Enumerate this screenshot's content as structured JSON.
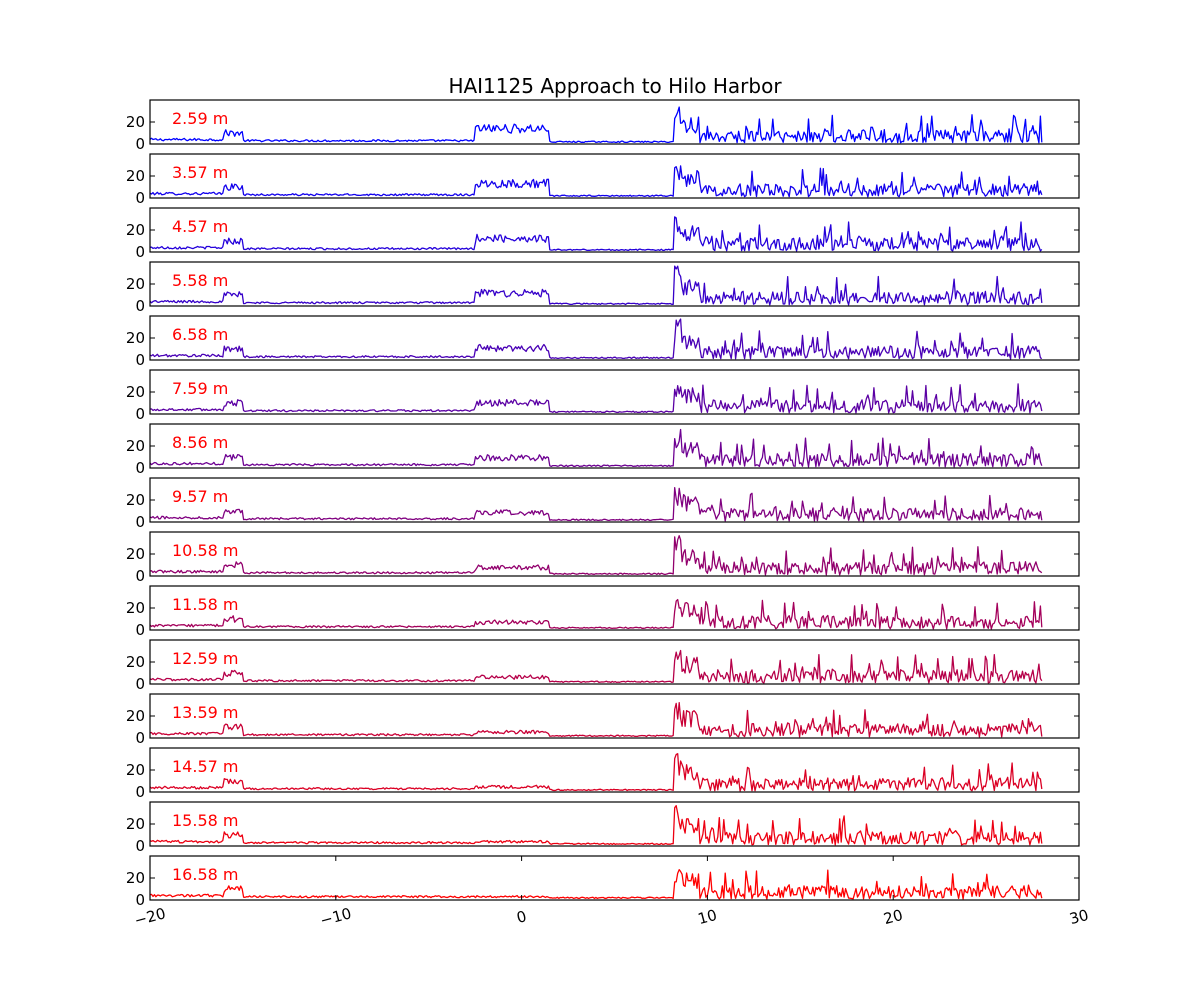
{
  "chart_data": {
    "type": "line",
    "title": "HAI1125   Approach to Hilo Harbor",
    "xlabel": "",
    "ylabel": "",
    "xlim": [
      -20,
      30
    ],
    "x_ticks": [
      -20,
      -10,
      0,
      10,
      20,
      30
    ],
    "x_tick_labels": [
      "−20",
      "−10",
      "0",
      "10",
      "20",
      "30"
    ],
    "ylim": [
      0,
      40
    ],
    "y_ticks": [
      0,
      20
    ],
    "y_tick_labels": [
      "0",
      "20"
    ],
    "grid": false,
    "data_x_range": [
      -20,
      28
    ],
    "color_start": "#0000ff",
    "color_end": "#ff0000",
    "label_color": "#ff0000",
    "panels": [
      {
        "depth_label": "2.59 m",
        "color": "#0000ff"
      },
      {
        "depth_label": "3.57 m",
        "color": "#1200ed"
      },
      {
        "depth_label": "4.57 m",
        "color": "#2400db"
      },
      {
        "depth_label": "5.58 m",
        "color": "#3600c9"
      },
      {
        "depth_label": "6.58 m",
        "color": "#4900b6"
      },
      {
        "depth_label": "7.59 m",
        "color": "#5b00a4"
      },
      {
        "depth_label": "8.56 m",
        "color": "#6d0092"
      },
      {
        "depth_label": "9.57 m",
        "color": "#800080"
      },
      {
        "depth_label": "10.58 m",
        "color": "#92006d"
      },
      {
        "depth_label": "11.58 m",
        "color": "#a4005b"
      },
      {
        "depth_label": "12.59 m",
        "color": "#b60049"
      },
      {
        "depth_label": "13.59 m",
        "color": "#c90036"
      },
      {
        "depth_label": "14.57 m",
        "color": "#db0024"
      },
      {
        "depth_label": "15.58 m",
        "color": "#ed0012"
      },
      {
        "depth_label": "16.58 m",
        "color": "#ff0000"
      }
    ],
    "features": [
      {
        "x": [
          -20,
          -16
        ],
        "level": 4
      },
      {
        "x": [
          -16,
          -15
        ],
        "level": 10
      },
      {
        "x": [
          -15,
          -2.5
        ],
        "level": 3
      },
      {
        "x": [
          -2.5,
          1.5
        ],
        "level": 14
      },
      {
        "x": [
          1.5,
          8
        ],
        "level": 2
      },
      {
        "x": [
          8.2,
          8.6
        ],
        "level": 38
      },
      {
        "x": [
          8.6,
          9.6
        ],
        "level": 25
      },
      {
        "x": [
          9.6,
          28
        ],
        "level": 12
      }
    ]
  }
}
